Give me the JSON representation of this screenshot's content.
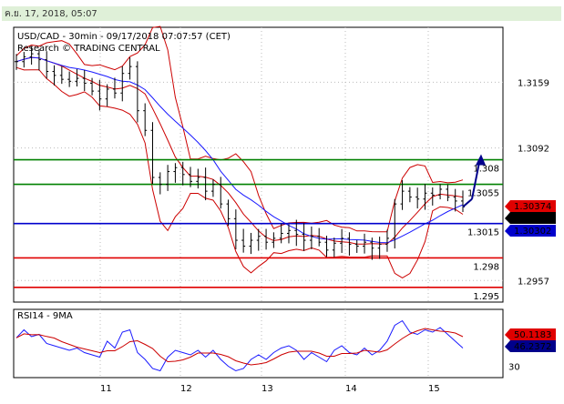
{
  "header": {
    "datetime": "ค.ย. 17, 2018, 05:07"
  },
  "main_panel": {
    "title": "USD/CAD - 30min - 09/17/2018 07:07:57 (CET)",
    "subtitle": "Research © TRADING CENTRAL"
  },
  "rsi_panel": {
    "title": "RSI14 - 9MA"
  },
  "colors": {
    "price": "#000000",
    "bands": "#cc0000",
    "ma": "#1a1aff",
    "resistance": "#008000",
    "pivot": "#0000cc",
    "support": "#e00000",
    "arrow": "#00008b",
    "header_bg": "#dff0d8"
  },
  "chart_data": [
    {
      "type": "line",
      "name": "price",
      "x_ticks": [
        "11",
        "12",
        "13",
        "14",
        "15"
      ],
      "y_ticks": [
        "1.3159",
        "1.3092",
        "1.2957"
      ],
      "ylim": [
        1.2935,
        1.3215
      ],
      "grid": true,
      "levels": [
        {
          "label": "1.308",
          "value": 1.308,
          "kind": "resistance"
        },
        {
          "label": "1.3055",
          "value": 1.3055,
          "kind": "resistance"
        },
        {
          "label": "1.3015",
          "value": 1.3015,
          "kind": "pivot"
        },
        {
          "label": "1.298",
          "value": 1.298,
          "kind": "support"
        },
        {
          "label": "1.295",
          "value": 1.295,
          "kind": "support"
        }
      ],
      "badges": [
        {
          "label": "1.30374",
          "value": 1.30374,
          "color": "#e00000"
        },
        {
          "label": "1.30325",
          "value": 1.30325,
          "color": "#000000"
        },
        {
          "label": "1.30302",
          "value": 1.30302,
          "color": "#0000cc"
        }
      ],
      "close": [
        1.318,
        1.3185,
        1.3188,
        1.3182,
        1.317,
        1.3166,
        1.3162,
        1.316,
        1.3163,
        1.3158,
        1.315,
        1.3142,
        1.3152,
        1.3148,
        1.3168,
        1.3175,
        1.313,
        1.311,
        1.3062,
        1.3055,
        1.3068,
        1.3072,
        1.3065,
        1.3058,
        1.3062,
        1.3048,
        1.3055,
        1.3035,
        1.302,
        1.2998,
        1.2992,
        1.2998,
        1.3002,
        1.2996,
        1.3,
        1.3005,
        1.3008,
        1.3004,
        1.2998,
        1.3002,
        1.2996,
        1.2988,
        1.2995,
        1.3,
        1.2994,
        1.2992,
        1.2996,
        1.299,
        1.2994,
        1.3,
        1.3035,
        1.3048,
        1.3042,
        1.304,
        1.3046,
        1.3044,
        1.305,
        1.3042,
        1.3038,
        1.3032
      ]
    },
    {
      "type": "line",
      "name": "RSI14",
      "y_ticks": [
        "30"
      ],
      "ylim": [
        20,
        80
      ],
      "badges": [
        {
          "label": "50.1183",
          "value": 50.1183,
          "color": "#e00000"
        },
        {
          "label": "46.2372",
          "value": 46.2372,
          "color": "#00008b"
        }
      ],
      "values": [
        55,
        62,
        56,
        58,
        50,
        48,
        46,
        44,
        46,
        42,
        40,
        38,
        52,
        46,
        60,
        62,
        42,
        36,
        28,
        26,
        38,
        44,
        42,
        40,
        44,
        38,
        44,
        36,
        30,
        26,
        28,
        36,
        40,
        36,
        42,
        46,
        48,
        44,
        36,
        42,
        38,
        34,
        44,
        48,
        42,
        40,
        46,
        40,
        44,
        52,
        66,
        70,
        60,
        58,
        62,
        60,
        64,
        58,
        52,
        46
      ]
    }
  ]
}
